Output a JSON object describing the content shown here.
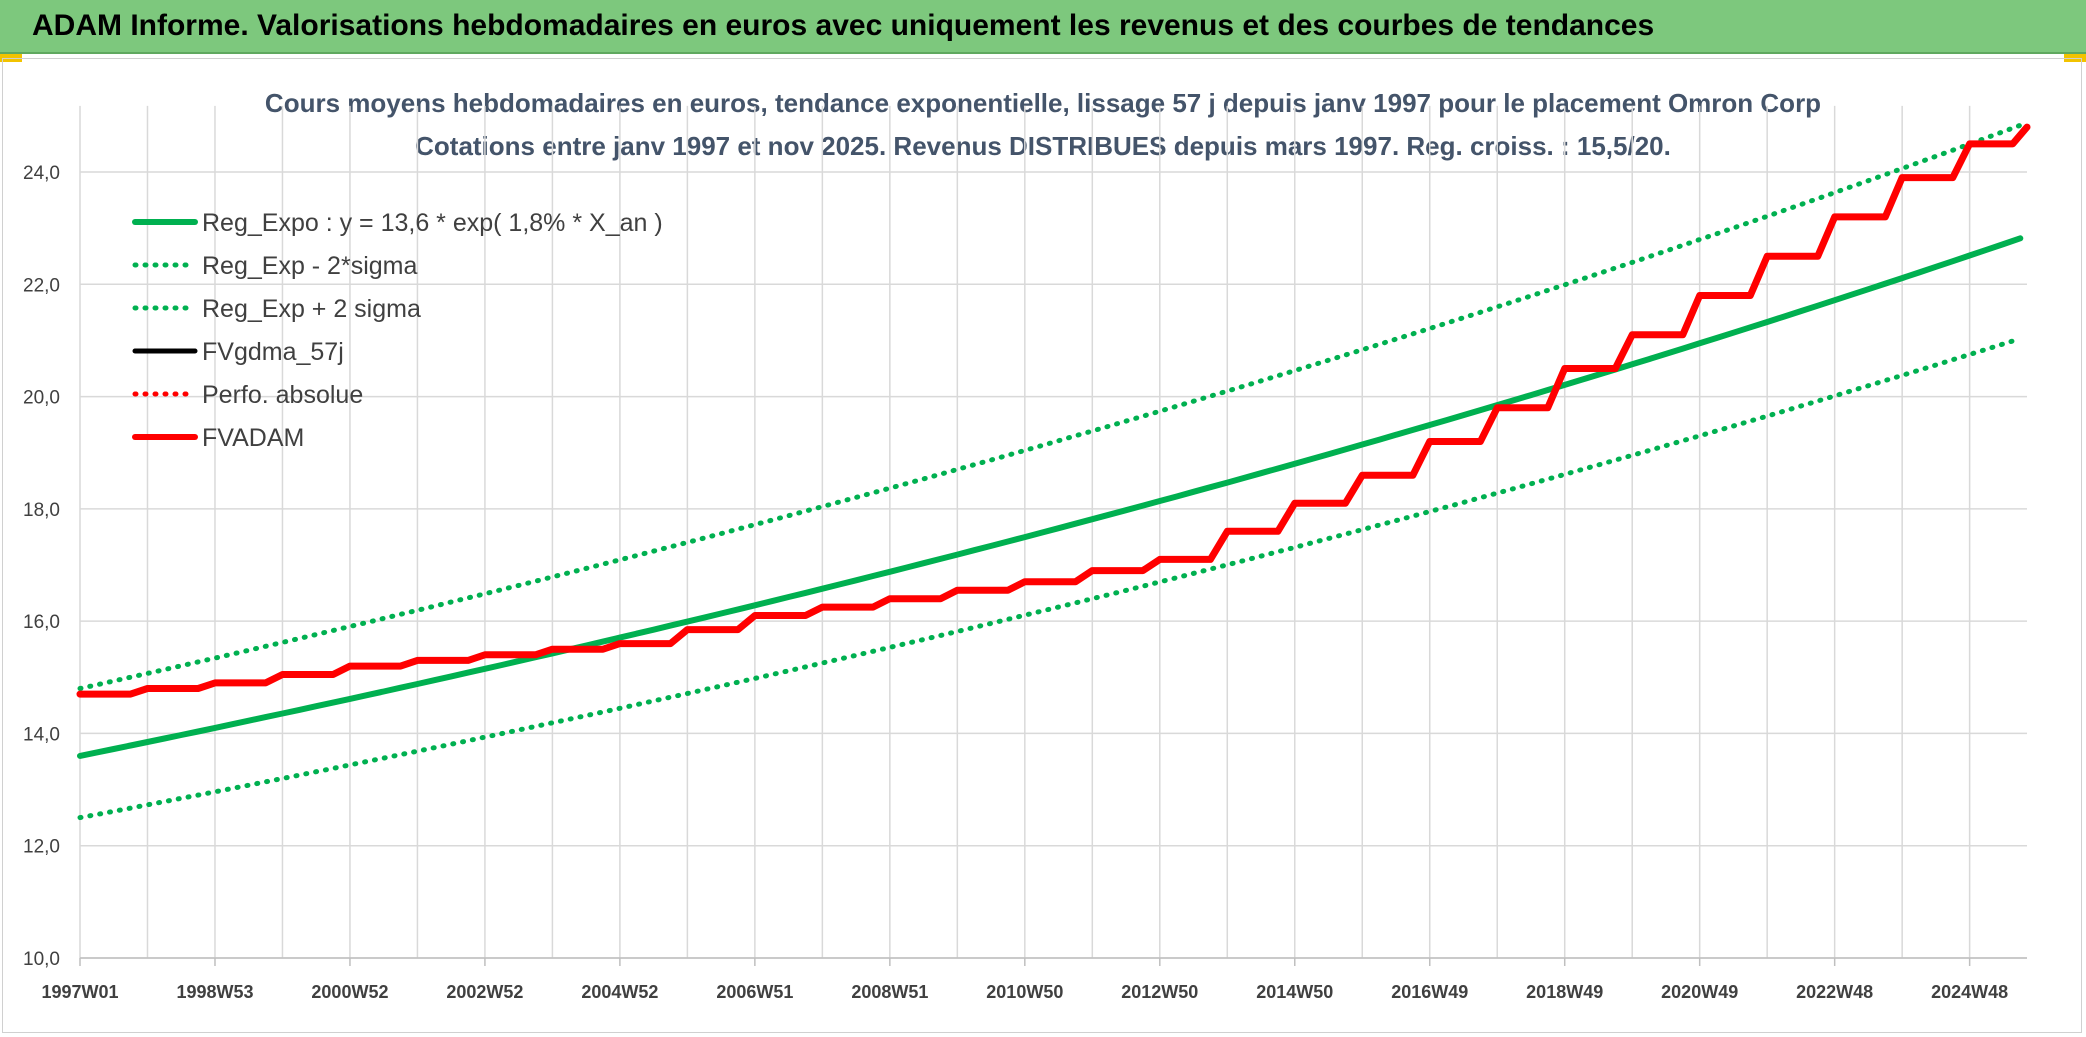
{
  "header": {
    "title": "ADAM Informe. Valorisations hebdomadaires en euros avec uniquement les revenus et des courbes de tendances"
  },
  "colors": {
    "header_bg": "#7dc87d",
    "green": "#00b050",
    "red": "#ff0000",
    "black": "#000000",
    "grid": "#d9d9d9",
    "title_text": "#44546a"
  },
  "chart_data": {
    "type": "line",
    "title_line1": "Cours moyens hebdomadaires en euros, tendance exponentielle, lissage 57 j depuis janv 1997 pour le placement Omron Corp",
    "title_line2": "Cotations entre janv 1997 et nov 2025. Revenus DISTRIBUES depuis mars 1997. Reg. croiss. : 15,5/20.",
    "x_tick_labels": [
      "1997W01",
      "1998W53",
      "2000W52",
      "2002W52",
      "2004W52",
      "2006W51",
      "2008W51",
      "2010W50",
      "2012W50",
      "2014W50",
      "2016W49",
      "2018W49",
      "2020W49",
      "2022W48",
      "2024W48"
    ],
    "x_range_years": [
      1997.0,
      2025.85
    ],
    "ylim": [
      10,
      25
    ],
    "y_ticks": [
      "10,0",
      "12,0",
      "14,0",
      "16,0",
      "18,0",
      "20,0",
      "22,0",
      "24,0"
    ],
    "grid": true,
    "legend_position": "top-left",
    "series": [
      {
        "name": "Reg_Expo : y = 13,6 * exp( 1,8% *  X_an )",
        "style": "solid-thick",
        "color": "#00b050",
        "formula": {
          "a": 13.6,
          "rate": 0.018
        },
        "x": [
          1997.0,
          2000.0,
          2005.0,
          2010.0,
          2015.0,
          2020.0,
          2025.85
        ],
        "y": [
          13.6,
          14.4,
          15.8,
          17.4,
          18.9,
          20.8,
          23.0
        ]
      },
      {
        "name": "Reg_Exp - 2*sigma",
        "style": "dotted",
        "color": "#00b050",
        "x": [
          1997.0,
          2000.0,
          2005.0,
          2010.0,
          2015.0,
          2020.0,
          2025.85
        ],
        "y": [
          12.5,
          13.3,
          14.6,
          16.0,
          17.4,
          19.2,
          21.1
        ]
      },
      {
        "name": "Reg_Exp + 2 sigma",
        "style": "dotted",
        "color": "#00b050",
        "x": [
          1997.0,
          2000.0,
          2005.0,
          2010.0,
          2015.0,
          2020.0,
          2025.85
        ],
        "y": [
          14.8,
          15.7,
          17.2,
          18.8,
          20.6,
          22.6,
          25.0
        ]
      },
      {
        "name": "FVgdma_57j",
        "style": "solid",
        "color": "#000000",
        "x": [
          1997.0,
          1999.0,
          2001.0,
          2003.0,
          2005.0,
          2007.0,
          2009.0,
          2011.0,
          2013.0,
          2014.0,
          2015.0,
          2016.0,
          2017.0,
          2018.0,
          2019.0,
          2020.0,
          2021.0,
          2022.0,
          2023.0,
          2024.0,
          2025.0,
          2025.85
        ],
        "y": [
          14.7,
          14.9,
          15.2,
          15.4,
          15.6,
          16.1,
          16.4,
          16.7,
          17.1,
          17.6,
          18.1,
          18.6,
          19.2,
          19.8,
          20.5,
          21.1,
          21.8,
          22.5,
          23.2,
          23.9,
          24.5,
          24.8
        ]
      },
      {
        "name": "Perfo. absolue",
        "style": "dotted",
        "color": "#ff0000",
        "x": [
          1997.0,
          1999.0,
          2001.0,
          2003.0,
          2005.0,
          2007.0,
          2009.0,
          2011.0,
          2013.0,
          2014.0,
          2015.0,
          2016.0,
          2017.0,
          2018.0,
          2019.0,
          2020.0,
          2021.0,
          2022.0,
          2023.0,
          2024.0,
          2025.0,
          2025.85
        ],
        "y": [
          14.7,
          14.9,
          15.2,
          15.4,
          15.6,
          16.1,
          16.4,
          16.7,
          17.1,
          17.6,
          18.1,
          18.6,
          19.2,
          19.8,
          20.5,
          21.1,
          21.8,
          22.5,
          23.2,
          23.9,
          24.5,
          24.8
        ]
      },
      {
        "name": "FVADAM",
        "style": "solid-thick",
        "color": "#ff0000",
        "x": [
          1997.0,
          1999.0,
          2001.0,
          2003.0,
          2005.0,
          2007.0,
          2009.0,
          2011.0,
          2013.0,
          2014.0,
          2015.0,
          2016.0,
          2017.0,
          2018.0,
          2019.0,
          2020.0,
          2021.0,
          2022.0,
          2023.0,
          2024.0,
          2025.0,
          2025.85
        ],
        "y": [
          14.7,
          14.9,
          15.2,
          15.4,
          15.6,
          16.1,
          16.4,
          16.7,
          17.1,
          17.6,
          18.1,
          18.6,
          19.2,
          19.8,
          20.5,
          21.1,
          21.8,
          22.5,
          23.2,
          23.9,
          24.5,
          24.8
        ]
      }
    ]
  }
}
